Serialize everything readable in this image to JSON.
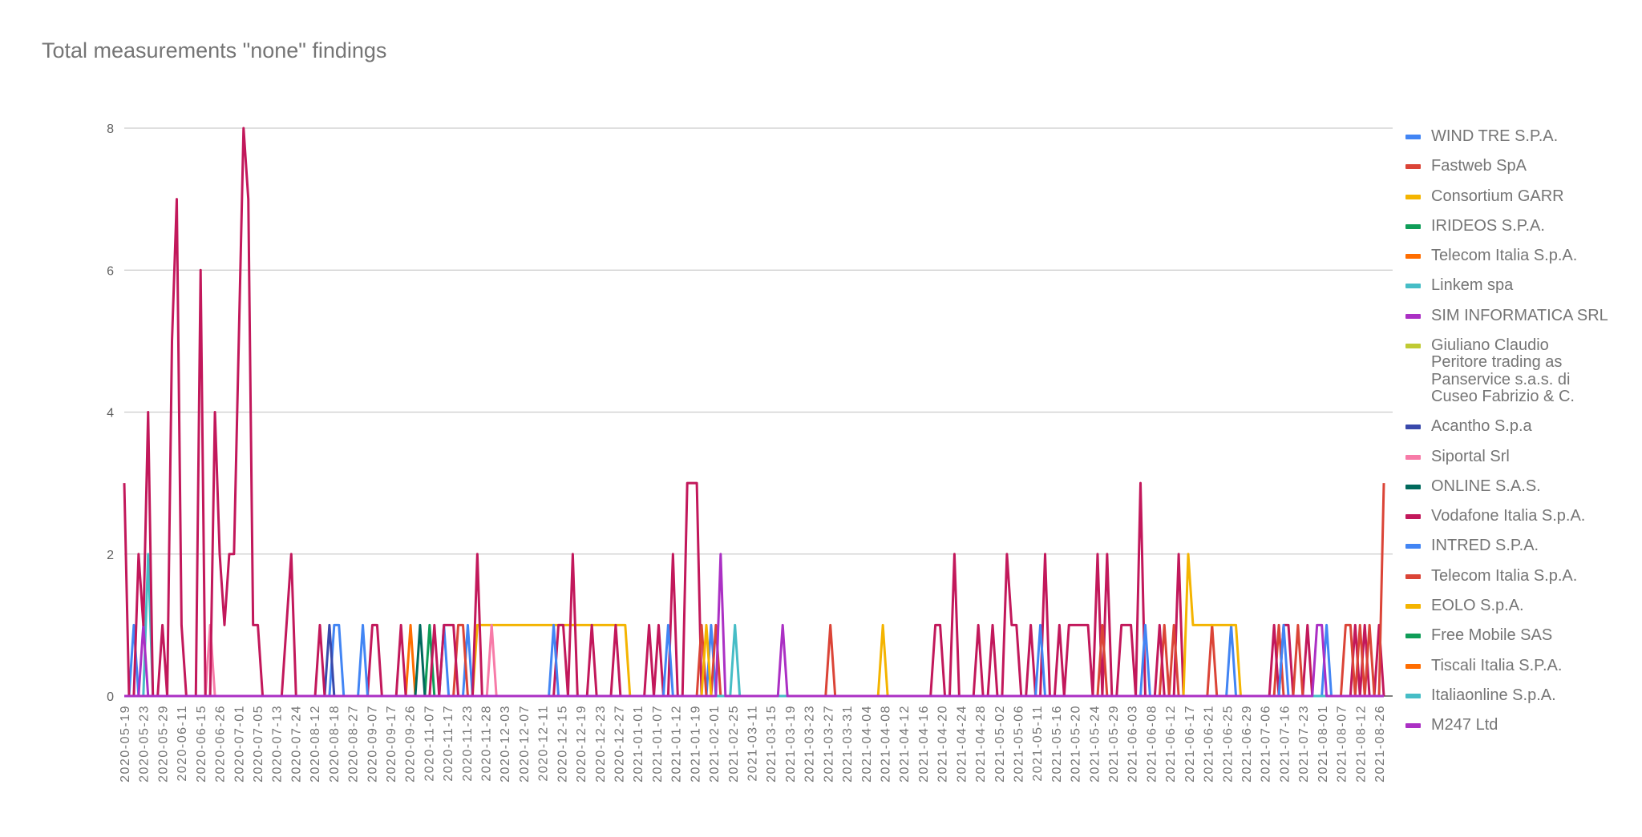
{
  "chart_data": {
    "type": "line",
    "title": "Total measurements \"none\" findings",
    "xlabel": "",
    "ylabel": "",
    "ylim": [
      0,
      8
    ],
    "yticks": [
      0,
      2,
      4,
      6,
      8
    ],
    "grid": true,
    "legend_position": "right",
    "x_tick_labels": [
      "2020-05-19",
      "2020-05-23",
      "2020-05-29",
      "2020-06-11",
      "2020-06-15",
      "2020-06-26",
      "2020-07-01",
      "2020-07-05",
      "2020-07-13",
      "2020-07-24",
      "2020-08-12",
      "2020-08-18",
      "2020-08-27",
      "2020-09-07",
      "2020-09-17",
      "2020-09-26",
      "2020-11-07",
      "2020-11-17",
      "2020-11-23",
      "2020-11-28",
      "2020-12-03",
      "2020-12-07",
      "2020-12-11",
      "2020-12-15",
      "2020-12-19",
      "2020-12-23",
      "2020-12-27",
      "2021-01-01",
      "2021-01-07",
      "2021-01-12",
      "2021-01-19",
      "2021-02-01",
      "2021-02-25",
      "2021-03-11",
      "2021-03-15",
      "2021-03-19",
      "2021-03-23",
      "2021-03-27",
      "2021-03-31",
      "2021-04-04",
      "2021-04-08",
      "2021-04-12",
      "2021-04-16",
      "2021-04-20",
      "2021-04-24",
      "2021-04-28",
      "2021-05-02",
      "2021-05-06",
      "2021-05-11",
      "2021-05-16",
      "2021-05-20",
      "2021-05-24",
      "2021-05-29",
      "2021-06-03",
      "2021-06-08",
      "2021-06-12",
      "2021-06-17",
      "2021-06-21",
      "2021-06-25",
      "2021-06-29",
      "2021-07-06",
      "2021-07-16",
      "2021-07-23",
      "2021-08-01",
      "2021-08-07",
      "2021-08-12",
      "2021-08-26"
    ],
    "points_per_tick_label": 4,
    "point_note": "series.points are [category_index, value]; unlisted categories are 0",
    "series": [
      {
        "name": "WIND TRE S.P.A.",
        "color": "#4285f4",
        "points": [
          [
            2,
            1
          ],
          [
            44,
            1
          ],
          [
            45,
            1
          ],
          [
            67,
            1
          ],
          [
            72,
            1
          ],
          [
            123,
            1
          ],
          [
            232,
            1
          ],
          [
            252,
            1
          ]
        ]
      },
      {
        "name": "Fastweb SpA",
        "color": "#db4437",
        "points": [
          [
            70,
            1
          ],
          [
            71,
            1
          ],
          [
            124,
            1
          ],
          [
            218,
            1
          ],
          [
            242,
            1
          ]
        ]
      },
      {
        "name": "Consortium GARR",
        "color": "#f4b400",
        "points": [
          [
            74,
            1
          ],
          [
            75,
            1
          ],
          [
            76,
            1
          ],
          [
            77,
            1
          ],
          [
            78,
            1
          ],
          [
            79,
            1
          ],
          [
            80,
            1
          ],
          [
            81,
            1
          ],
          [
            82,
            1
          ],
          [
            83,
            1
          ],
          [
            84,
            1
          ],
          [
            85,
            1
          ],
          [
            86,
            1
          ],
          [
            87,
            1
          ],
          [
            88,
            1
          ],
          [
            89,
            1
          ],
          [
            90,
            1
          ],
          [
            91,
            1
          ],
          [
            92,
            1
          ],
          [
            93,
            1
          ],
          [
            94,
            1
          ],
          [
            95,
            1
          ],
          [
            96,
            1
          ],
          [
            97,
            1
          ],
          [
            98,
            1
          ],
          [
            99,
            1
          ],
          [
            100,
            1
          ],
          [
            101,
            1
          ],
          [
            102,
            1
          ],
          [
            103,
            1
          ],
          [
            104,
            1
          ],
          [
            105,
            1
          ]
        ]
      },
      {
        "name": "IRIDEOS S.P.A.",
        "color": "#0f9d58",
        "points": [
          [
            64,
            1
          ]
        ]
      },
      {
        "name": "Telecom Italia S.p.A.",
        "color": "#ff6d00",
        "points": [
          [
            60,
            1
          ]
        ]
      },
      {
        "name": "Linkem spa",
        "color": "#46bdc6",
        "points": [
          [
            5,
            2
          ]
        ]
      },
      {
        "name": "SIM INFORMATICA SRL",
        "color": "#ab30c4",
        "points": [
          [
            4,
            1
          ]
        ]
      },
      {
        "name": "Giuliano Claudio Peritore trading as Panservice s.a.s. di Cuseo Fabrizio & C.",
        "color": "#c0ca33",
        "points": []
      },
      {
        "name": "Acantho S.p.a",
        "color": "#3949ab",
        "points": [
          [
            43,
            1
          ]
        ]
      },
      {
        "name": "Siportal Srl",
        "color": "#f77ba8",
        "points": [
          [
            18,
            1
          ],
          [
            77,
            1
          ]
        ]
      },
      {
        "name": "ONLINE S.A.S.",
        "color": "#00695c",
        "points": [
          [
            62,
            1
          ]
        ]
      },
      {
        "name": "Vodafone Italia S.p.A.",
        "color": "#c2185b",
        "points": [
          [
            0,
            3
          ],
          [
            3,
            2
          ],
          [
            4,
            1
          ],
          [
            5,
            4
          ],
          [
            8,
            1
          ],
          [
            10,
            5
          ],
          [
            11,
            7
          ],
          [
            12,
            1
          ],
          [
            16,
            6
          ],
          [
            19,
            4
          ],
          [
            20,
            2
          ],
          [
            21,
            1
          ],
          [
            22,
            2
          ],
          [
            23,
            2
          ],
          [
            24,
            5
          ],
          [
            25,
            8
          ],
          [
            26,
            7
          ],
          [
            27,
            1
          ],
          [
            28,
            1
          ],
          [
            34,
            1
          ],
          [
            35,
            2
          ],
          [
            41,
            1
          ],
          [
            52,
            1
          ],
          [
            53,
            1
          ],
          [
            58,
            1
          ],
          [
            65,
            1
          ],
          [
            67,
            1
          ],
          [
            68,
            1
          ],
          [
            69,
            1
          ],
          [
            74,
            2
          ],
          [
            91,
            1
          ],
          [
            92,
            1
          ],
          [
            94,
            2
          ],
          [
            98,
            1
          ],
          [
            103,
            1
          ],
          [
            110,
            1
          ],
          [
            112,
            1
          ],
          [
            115,
            2
          ],
          [
            118,
            3
          ],
          [
            119,
            3
          ],
          [
            120,
            3
          ],
          [
            170,
            1
          ],
          [
            171,
            1
          ],
          [
            174,
            2
          ],
          [
            179,
            1
          ],
          [
            182,
            1
          ],
          [
            185,
            2
          ],
          [
            186,
            1
          ],
          [
            187,
            1
          ],
          [
            190,
            1
          ],
          [
            193,
            2
          ],
          [
            196,
            1
          ],
          [
            198,
            1
          ],
          [
            199,
            1
          ],
          [
            200,
            1
          ],
          [
            201,
            1
          ],
          [
            202,
            1
          ],
          [
            204,
            2
          ],
          [
            206,
            2
          ],
          [
            209,
            1
          ],
          [
            210,
            1
          ],
          [
            211,
            1
          ],
          [
            213,
            3
          ],
          [
            217,
            1
          ],
          [
            221,
            2
          ],
          [
            241,
            1
          ],
          [
            243,
            1
          ],
          [
            244,
            1
          ],
          [
            248,
            1
          ],
          [
            258,
            1
          ],
          [
            260,
            1
          ],
          [
            263,
            1
          ]
        ]
      },
      {
        "name": "INTRED S.P.A.",
        "color": "#4285f4",
        "points": [
          [
            50,
            1
          ],
          [
            90,
            1
          ],
          [
            114,
            1
          ],
          [
            192,
            1
          ],
          [
            214,
            1
          ],
          [
            243,
            1
          ]
        ]
      },
      {
        "name": "Telecom Italia S.p.A.",
        "color": "#db4437",
        "points": [
          [
            121,
            1
          ],
          [
            148,
            1
          ],
          [
            205,
            1
          ],
          [
            220,
            1
          ],
          [
            228,
            1
          ],
          [
            246,
            1
          ],
          [
            256,
            1
          ],
          [
            257,
            1
          ],
          [
            259,
            1
          ],
          [
            261,
            1
          ],
          [
            264,
            3
          ]
        ]
      },
      {
        "name": "EOLO S.p.A.",
        "color": "#f4b400",
        "points": [
          [
            122,
            1
          ],
          [
            159,
            1
          ],
          [
            223,
            2
          ],
          [
            224,
            1
          ],
          [
            225,
            1
          ],
          [
            226,
            1
          ],
          [
            227,
            1
          ],
          [
            228,
            1
          ],
          [
            229,
            1
          ],
          [
            230,
            1
          ],
          [
            231,
            1
          ],
          [
            232,
            1
          ],
          [
            233,
            1
          ]
        ]
      },
      {
        "name": "Free Mobile SAS",
        "color": "#0f9d58",
        "points": []
      },
      {
        "name": "Tiscali Italia S.P.A.",
        "color": "#ff6d00",
        "points": []
      },
      {
        "name": "Italiaonline S.p.A.",
        "color": "#46bdc6",
        "points": [
          [
            128,
            1
          ]
        ]
      },
      {
        "name": "M247 Ltd",
        "color": "#ab30c4",
        "points": [
          [
            125,
            2
          ],
          [
            138,
            1
          ],
          [
            250,
            1
          ],
          [
            251,
            1
          ]
        ]
      }
    ]
  }
}
